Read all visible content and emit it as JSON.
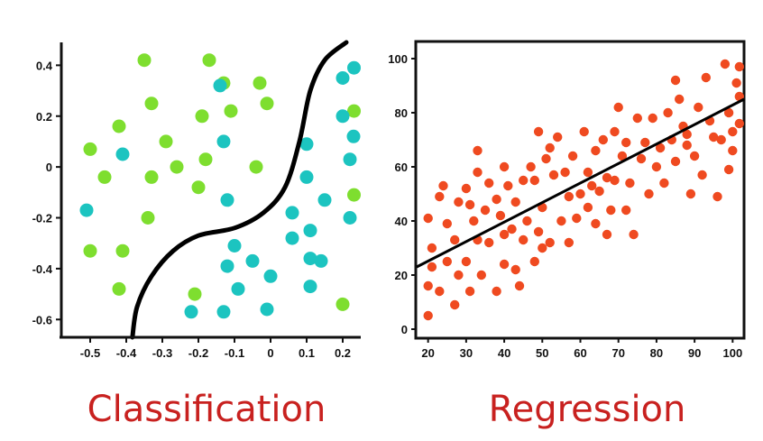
{
  "colors": {
    "class_a": "#7ede2f",
    "class_b": "#1cc4c0",
    "regression_points": "#ef4a20",
    "axis": "#111111",
    "caption": "#c8211f"
  },
  "chart_data": [
    {
      "type": "scatter",
      "caption": "Classification",
      "xlim": [
        -0.58,
        0.25
      ],
      "ylim": [
        -0.67,
        0.49
      ],
      "xticks": [
        {
          "value": -0.5,
          "label": "-0.5"
        },
        {
          "value": -0.4,
          "label": "-0.4"
        },
        {
          "value": -0.3,
          "label": "-0.3"
        },
        {
          "value": -0.2,
          "label": "-0.2"
        },
        {
          "value": -0.1,
          "label": "-0.1"
        },
        {
          "value": 0,
          "label": "0"
        },
        {
          "value": 0.1,
          "label": "0.1"
        },
        {
          "value": 0.2,
          "label": "0.2"
        }
      ],
      "yticks": [
        {
          "value": 0.4,
          "label": "0.4"
        },
        {
          "value": 0.2,
          "label": "0.2"
        },
        {
          "value": 0,
          "label": "0"
        },
        {
          "value": -0.2,
          "label": "-0.2"
        },
        {
          "value": -0.4,
          "label": "-0.4"
        },
        {
          "value": -0.6,
          "label": "-0.6"
        }
      ],
      "grid": false,
      "boundary": [
        [
          -0.383,
          -0.67
        ],
        [
          -0.37,
          -0.55
        ],
        [
          -0.33,
          -0.43
        ],
        [
          -0.27,
          -0.33
        ],
        [
          -0.2,
          -0.27
        ],
        [
          -0.1,
          -0.24
        ],
        [
          -0.02,
          -0.18
        ],
        [
          0.04,
          -0.08
        ],
        [
          0.08,
          0.1
        ],
        [
          0.11,
          0.3
        ],
        [
          0.15,
          0.42
        ],
        [
          0.21,
          0.49
        ]
      ],
      "series": [
        {
          "color": "#7ede2f",
          "points": [
            [
              -0.35,
              0.42
            ],
            [
              -0.17,
              0.42
            ],
            [
              -0.13,
              0.33
            ],
            [
              -0.33,
              0.25
            ],
            [
              -0.03,
              0.33
            ],
            [
              -0.19,
              0.2
            ],
            [
              -0.5,
              0.07
            ],
            [
              -0.42,
              0.16
            ],
            [
              -0.29,
              0.1
            ],
            [
              -0.11,
              0.22
            ],
            [
              -0.01,
              0.25
            ],
            [
              -0.33,
              -0.04
            ],
            [
              -0.18,
              0.03
            ],
            [
              -0.46,
              -0.04
            ],
            [
              -0.26,
              0.0
            ],
            [
              -0.2,
              -0.08
            ],
            [
              -0.34,
              -0.2
            ],
            [
              -0.04,
              0.0
            ],
            [
              -0.5,
              -0.33
            ],
            [
              -0.41,
              -0.33
            ],
            [
              -0.42,
              -0.48
            ],
            [
              -0.21,
              -0.5
            ],
            [
              0.2,
              -0.54
            ],
            [
              0.24,
              0.22
            ],
            [
              0.25,
              -0.11
            ]
          ]
        },
        {
          "color": "#1cc4c0",
          "points": [
            [
              0.2,
              0.35
            ],
            [
              0.24,
              0.39
            ],
            [
              -0.14,
              0.32
            ],
            [
              0.2,
              0.2
            ],
            [
              -0.13,
              0.1
            ],
            [
              0.23,
              0.12
            ],
            [
              0.1,
              0.09
            ],
            [
              -0.51,
              -0.17
            ],
            [
              -0.41,
              0.05
            ],
            [
              0.22,
              0.03
            ],
            [
              0.1,
              -0.04
            ],
            [
              -0.12,
              -0.13
            ],
            [
              0.15,
              -0.13
            ],
            [
              0.22,
              -0.2
            ],
            [
              0.06,
              -0.18
            ],
            [
              0.11,
              -0.25
            ],
            [
              0.06,
              -0.28
            ],
            [
              -0.1,
              -0.31
            ],
            [
              -0.05,
              -0.37
            ],
            [
              0.11,
              -0.36
            ],
            [
              0.14,
              -0.37
            ],
            [
              0.0,
              -0.43
            ],
            [
              -0.12,
              -0.39
            ],
            [
              -0.09,
              -0.48
            ],
            [
              0.11,
              -0.47
            ],
            [
              -0.22,
              -0.57
            ],
            [
              -0.13,
              -0.57
            ],
            [
              -0.01,
              -0.56
            ]
          ]
        }
      ]
    },
    {
      "type": "scatter",
      "caption": "Regression",
      "xlim": [
        17,
        103
      ],
      "ylim": [
        -3,
        106
      ],
      "xticks": [
        {
          "value": 20,
          "label": "20"
        },
        {
          "value": 30,
          "label": "30"
        },
        {
          "value": 40,
          "label": "40"
        },
        {
          "value": 50,
          "label": "50"
        },
        {
          "value": 60,
          "label": "60"
        },
        {
          "value": 70,
          "label": "70"
        },
        {
          "value": 80,
          "label": "80"
        },
        {
          "value": 90,
          "label": "90"
        },
        {
          "value": 100,
          "label": "100"
        }
      ],
      "yticks": [
        {
          "value": 0,
          "label": "0"
        },
        {
          "value": 20,
          "label": "20"
        },
        {
          "value": 40,
          "label": "40"
        },
        {
          "value": 60,
          "label": "60"
        },
        {
          "value": 80,
          "label": "80"
        },
        {
          "value": 100,
          "label": "100"
        }
      ],
      "grid": false,
      "trendline": [
        [
          17,
          23
        ],
        [
          103,
          85
        ]
      ],
      "series": [
        {
          "color": "#ef4a20",
          "points": [
            [
              20,
              5
            ],
            [
              20,
              16
            ],
            [
              21,
              23
            ],
            [
              23,
              14
            ],
            [
              25,
              25
            ],
            [
              27,
              9
            ],
            [
              28,
              20
            ],
            [
              31,
              14
            ],
            [
              30,
              25
            ],
            [
              33,
              33
            ],
            [
              34,
              20
            ],
            [
              36,
              32
            ],
            [
              38,
              14
            ],
            [
              40,
              24
            ],
            [
              40,
              35
            ],
            [
              43,
              22
            ],
            [
              44,
              16
            ],
            [
              45,
              33
            ],
            [
              48,
              25
            ],
            [
              49,
              36
            ],
            [
              50,
              30
            ],
            [
              52,
              32
            ],
            [
              55,
              40
            ],
            [
              57,
              32
            ],
            [
              60,
              50
            ],
            [
              62,
              45
            ],
            [
              64,
              39
            ],
            [
              65,
              51
            ],
            [
              67,
              35
            ],
            [
              68,
              44
            ],
            [
              72,
              44
            ],
            [
              74,
              35
            ],
            [
              20,
              41
            ],
            [
              21,
              30
            ],
            [
              23,
              49
            ],
            [
              24,
              53
            ],
            [
              25,
              39
            ],
            [
              27,
              33
            ],
            [
              28,
              47
            ],
            [
              30,
              52
            ],
            [
              31,
              46
            ],
            [
              32,
              40
            ],
            [
              33,
              58
            ],
            [
              35,
              44
            ],
            [
              33,
              66
            ],
            [
              36,
              54
            ],
            [
              38,
              48
            ],
            [
              39,
              42
            ],
            [
              40,
              60
            ],
            [
              41,
              53
            ],
            [
              42,
              37
            ],
            [
              43,
              47
            ],
            [
              45,
              55
            ],
            [
              46,
              40
            ],
            [
              47,
              60
            ],
            [
              48,
              55
            ],
            [
              49,
              73
            ],
            [
              50,
              45
            ],
            [
              51,
              63
            ],
            [
              52,
              67
            ],
            [
              53,
              57
            ],
            [
              54,
              71
            ],
            [
              56,
              58
            ],
            [
              57,
              49
            ],
            [
              58,
              64
            ],
            [
              59,
              41
            ],
            [
              61,
              73
            ],
            [
              62,
              58
            ],
            [
              63,
              53
            ],
            [
              64,
              66
            ],
            [
              66,
              70
            ],
            [
              67,
              56
            ],
            [
              69,
              73
            ],
            [
              69,
              55
            ],
            [
              70,
              82
            ],
            [
              71,
              64
            ],
            [
              72,
              69
            ],
            [
              73,
              54
            ],
            [
              75,
              78
            ],
            [
              76,
              63
            ],
            [
              77,
              69
            ],
            [
              78,
              50
            ],
            [
              79,
              78
            ],
            [
              80,
              60
            ],
            [
              81,
              67
            ],
            [
              82,
              54
            ],
            [
              83,
              80
            ],
            [
              84,
              70
            ],
            [
              85,
              62
            ],
            [
              86,
              85
            ],
            [
              87,
              75
            ],
            [
              88,
              68
            ],
            [
              89,
              50
            ],
            [
              90,
              64
            ],
            [
              91,
              82
            ],
            [
              92,
              57
            ],
            [
              93,
              93
            ],
            [
              94,
              77
            ],
            [
              95,
              71
            ],
            [
              96,
              49
            ],
            [
              97,
              70
            ],
            [
              98,
              98
            ],
            [
              99,
              80
            ],
            [
              100,
              73
            ],
            [
              101,
              91
            ],
            [
              102,
              97
            ],
            [
              103,
              76
            ],
            [
              104,
              86
            ],
            [
              99,
              59
            ],
            [
              100,
              66
            ],
            [
              88,
              72
            ],
            [
              85,
              92
            ]
          ]
        }
      ]
    }
  ]
}
